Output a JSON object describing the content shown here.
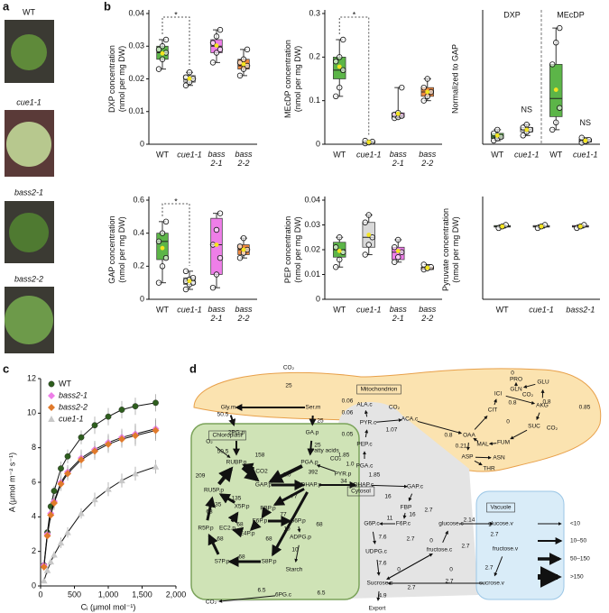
{
  "panel_letters": [
    "a",
    "b",
    "c",
    "d"
  ],
  "photos": {
    "labels": [
      "WT",
      "cue1-1",
      "bass2-1",
      "bass2-2"
    ]
  },
  "chart_data": [
    {
      "type": "box",
      "ylabel": "DXP concentration (nmol per mg DW)",
      "categories": [
        "WT",
        "cue1-1",
        "bass 2-1",
        "bass 2-2"
      ],
      "ylim": [
        0,
        0.04
      ],
      "yticks": [
        0,
        0.01,
        0.02,
        0.03,
        0.04
      ],
      "annotation": "*",
      "boxes": [
        {
          "color": "#5cb548",
          "min": 0.023,
          "q1": 0.026,
          "median": 0.028,
          "q3": 0.03,
          "max": 0.032,
          "mean": 0.0278,
          "points": [
            0.023,
            0.026,
            0.028,
            0.029,
            0.03,
            0.032
          ]
        },
        {
          "color": "#d9d9d9",
          "min": 0.018,
          "q1": 0.019,
          "median": 0.02,
          "q3": 0.021,
          "max": 0.022,
          "mean": 0.0201,
          "points": [
            0.018,
            0.019,
            0.02,
            0.0205,
            0.022
          ]
        },
        {
          "color": "#ee7ee8",
          "min": 0.025,
          "q1": 0.028,
          "median": 0.03,
          "q3": 0.032,
          "max": 0.035,
          "mean": 0.0302,
          "points": [
            0.025,
            0.028,
            0.029,
            0.031,
            0.033,
            0.035
          ]
        },
        {
          "color": "#f0883e",
          "min": 0.021,
          "q1": 0.023,
          "median": 0.024,
          "q3": 0.026,
          "max": 0.029,
          "mean": 0.0245,
          "points": [
            0.021,
            0.023,
            0.024,
            0.025,
            0.026,
            0.029
          ]
        }
      ]
    },
    {
      "type": "box",
      "ylabel": "MEcDP concentration (nmol per mg DW)",
      "categories": [
        "WT",
        "cue1-1",
        "bass 2-1",
        "bass 2-2"
      ],
      "ylim": [
        0,
        0.3
      ],
      "yticks": [
        0,
        0.1,
        0.2,
        0.3
      ],
      "annotation": "*",
      "boxes": [
        {
          "color": "#5cb548",
          "min": 0.11,
          "q1": 0.15,
          "median": 0.17,
          "q3": 0.2,
          "max": 0.24,
          "mean": 0.178,
          "points": [
            0.11,
            0.13,
            0.17,
            0.19,
            0.2,
            0.24
          ]
        },
        {
          "color": "#d9d9d9",
          "min": 0.002,
          "q1": 0.003,
          "median": 0.004,
          "q3": 0.006,
          "max": 0.008,
          "mean": 0.005,
          "points": [
            0.002,
            0.004,
            0.006,
            0.008
          ]
        },
        {
          "color": "#ee7ee8",
          "min": 0.06,
          "q1": 0.062,
          "median": 0.065,
          "q3": 0.072,
          "max": 0.13,
          "mean": 0.07,
          "points": [
            0.06,
            0.062,
            0.065,
            0.068,
            0.072,
            0.13
          ]
        },
        {
          "color": "#f0883e",
          "min": 0.1,
          "q1": 0.11,
          "median": 0.12,
          "q3": 0.13,
          "max": 0.15,
          "mean": 0.12,
          "points": [
            0.1,
            0.11,
            0.12,
            0.13,
            0.15
          ]
        }
      ]
    },
    {
      "type": "box",
      "ylabel": "Normalized to GAP",
      "categories": [
        "WT",
        "cue1-1",
        "WT",
        "cue1-1"
      ],
      "groups": [
        "DXP",
        "MEcDP"
      ],
      "annotations": [
        "NS",
        "NS"
      ],
      "ylim": [
        0,
        1.8
      ],
      "boxes": [
        {
          "color": "#5cb548",
          "min": 0.05,
          "q1": 0.08,
          "median": 0.1,
          "q3": 0.15,
          "max": 0.2,
          "mean": 0.12,
          "points": [
            0.05,
            0.08,
            0.1,
            0.15,
            0.2
          ]
        },
        {
          "color": "#d9d9d9",
          "min": 0.12,
          "q1": 0.17,
          "median": 0.2,
          "q3": 0.23,
          "max": 0.27,
          "mean": 0.2,
          "points": [
            0.12,
            0.17,
            0.2,
            0.23,
            0.27
          ]
        },
        {
          "color": "#5cb548",
          "min": 0.2,
          "q1": 0.38,
          "median": 0.63,
          "q3": 1.1,
          "max": 1.6,
          "mean": 0.75,
          "points": [
            0.2,
            0.3,
            0.5,
            1.1,
            1.4,
            1.6
          ]
        },
        {
          "color": "#d9d9d9",
          "min": 0.02,
          "q1": 0.03,
          "median": 0.05,
          "q3": 0.07,
          "max": 0.09,
          "mean": 0.05,
          "points": [
            0.02,
            0.04,
            0.06,
            0.09
          ]
        }
      ]
    },
    {
      "type": "box",
      "ylabel": "GAP concentration (nmol per mg DW)",
      "categories": [
        "WT",
        "cue1-1",
        "bass 2-1",
        "bass 2-2"
      ],
      "ylim": [
        0,
        0.6
      ],
      "yticks": [
        0,
        0.2,
        0.4,
        0.6
      ],
      "annotation": "*",
      "boxes": [
        {
          "color": "#5cb548",
          "min": 0.1,
          "q1": 0.24,
          "median": 0.35,
          "q3": 0.4,
          "max": 0.47,
          "mean": 0.31,
          "points": [
            0.1,
            0.2,
            0.25,
            0.35,
            0.4,
            0.47
          ]
        },
        {
          "color": "#d9d9d9",
          "min": 0.06,
          "q1": 0.09,
          "median": 0.11,
          "q3": 0.13,
          "max": 0.17,
          "mean": 0.11,
          "points": [
            0.06,
            0.09,
            0.1,
            0.11,
            0.12,
            0.13,
            0.17
          ]
        },
        {
          "color": "#ee7ee8",
          "min": 0.07,
          "q1": 0.15,
          "median": 0.33,
          "q3": 0.49,
          "max": 0.52,
          "mean": 0.33,
          "points": [
            0.07,
            0.15,
            0.25,
            0.33,
            0.42,
            0.52
          ]
        },
        {
          "color": "#f0883e",
          "min": 0.25,
          "q1": 0.27,
          "median": 0.3,
          "q3": 0.33,
          "max": 0.37,
          "mean": 0.3,
          "points": [
            0.25,
            0.28,
            0.3,
            0.32,
            0.37
          ]
        }
      ]
    },
    {
      "type": "box",
      "ylabel": "PEP concentration (nmol per mg DW)",
      "categories": [
        "WT",
        "cue1-1",
        "bass 2-1",
        "bass 2-2"
      ],
      "ylim": [
        0,
        0.04
      ],
      "yticks": [
        0,
        0.01,
        0.02,
        0.03,
        0.04
      ],
      "boxes": [
        {
          "color": "#5cb548",
          "min": 0.013,
          "q1": 0.017,
          "median": 0.02,
          "q3": 0.023,
          "max": 0.025,
          "mean": 0.0195,
          "points": [
            0.013,
            0.016,
            0.019,
            0.021,
            0.025
          ]
        },
        {
          "color": "#d9d9d9",
          "min": 0.018,
          "q1": 0.021,
          "median": 0.025,
          "q3": 0.031,
          "max": 0.034,
          "mean": 0.026,
          "points": [
            0.018,
            0.022,
            0.025,
            0.031,
            0.034
          ]
        },
        {
          "color": "#ee7ee8",
          "min": 0.015,
          "q1": 0.016,
          "median": 0.019,
          "q3": 0.021,
          "max": 0.024,
          "mean": 0.0195,
          "points": [
            0.015,
            0.017,
            0.019,
            0.021,
            0.024
          ]
        },
        {
          "color": "#f0883e",
          "min": 0.012,
          "q1": 0.012,
          "median": 0.0125,
          "q3": 0.013,
          "max": 0.014,
          "mean": 0.0127,
          "points": [
            0.012,
            0.0125,
            0.013,
            0.014
          ]
        }
      ]
    },
    {
      "type": "box",
      "ylabel": "Pyruvate concentration (nmol per mg DW)",
      "categories": [
        "WT",
        "cue1-1",
        "bass2-1"
      ],
      "ylim": [
        0,
        0.32
      ],
      "boxes": [
        {
          "color": "#5cb548",
          "min": 0.23,
          "q1": 0.233,
          "median": 0.235,
          "q3": 0.238,
          "max": 0.24,
          "mean": 0.235,
          "points": [
            0.23,
            0.235,
            0.24
          ]
        },
        {
          "color": "#d9d9d9",
          "min": 0.23,
          "q1": 0.233,
          "median": 0.235,
          "q3": 0.238,
          "max": 0.24,
          "mean": 0.235,
          "points": [
            0.23,
            0.235,
            0.24
          ]
        },
        {
          "color": "#ee7ee8",
          "min": 0.23,
          "q1": 0.233,
          "median": 0.235,
          "q3": 0.238,
          "max": 0.24,
          "mean": 0.235,
          "points": [
            0.23,
            0.235,
            0.24
          ]
        }
      ]
    },
    {
      "type": "line",
      "ylabel": "A (μmol m⁻² s⁻¹)",
      "xlabel": "Cᵢ (μmol mol⁻¹)",
      "xlim": [
        0,
        2000
      ],
      "ylim": [
        0,
        12
      ],
      "xticks": [
        0,
        500,
        {
          "value": 1000,
          "label": "1,000"
        },
        {
          "value": 1500,
          "label": "1,500"
        },
        {
          "value": 2000,
          "label": "2,000"
        }
      ],
      "yticks": [
        0,
        2,
        4,
        6,
        8,
        10,
        12
      ],
      "x": [
        50,
        100,
        150,
        200,
        300,
        400,
        600,
        800,
        1000,
        1200,
        1400,
        1700
      ],
      "series": [
        {
          "name": "WT",
          "color": "#2e5e1e",
          "marker": "circle",
          "values": [
            1.2,
            3.1,
            4.6,
            5.5,
            6.8,
            7.5,
            8.6,
            9.3,
            9.8,
            10.2,
            10.4,
            10.6
          ],
          "errors": [
            0.2,
            0.3,
            0.3,
            0.3,
            0.4,
            0.4,
            0.4,
            0.5,
            0.5,
            0.5,
            0.5,
            0.5
          ]
        },
        {
          "name": "bass2-1",
          "color": "#ee7ee8",
          "marker": "diamond",
          "values": [
            1.2,
            3.0,
            4.2,
            4.9,
            6.0,
            6.6,
            7.4,
            7.9,
            8.3,
            8.6,
            8.8,
            9.1
          ],
          "errors": [
            0.2,
            0.3,
            0.3,
            0.4,
            0.4,
            0.4,
            0.5,
            0.5,
            0.5,
            0.5,
            0.6,
            0.6
          ]
        },
        {
          "name": "bass2-2",
          "color": "#e07a2c",
          "marker": "diamond",
          "values": [
            1.1,
            2.9,
            4.1,
            4.8,
            5.9,
            6.5,
            7.3,
            7.8,
            8.2,
            8.5,
            8.7,
            9.0
          ],
          "errors": [
            0.2,
            0.3,
            0.3,
            0.4,
            0.4,
            0.4,
            0.5,
            0.5,
            0.5,
            0.5,
            0.6,
            0.6
          ]
        },
        {
          "name": "cue1-1",
          "color": "#c8c8c8",
          "marker": "triangle",
          "values": [
            0.3,
            0.9,
            1.4,
            1.8,
            2.5,
            3.1,
            4.2,
            5.0,
            5.6,
            6.1,
            6.5,
            6.9
          ],
          "errors": [
            0.1,
            0.2,
            0.2,
            0.2,
            0.3,
            0.3,
            0.3,
            0.4,
            0.4,
            0.4,
            0.4,
            0.4
          ]
        }
      ]
    }
  ],
  "diagram": {
    "compartments": [
      "Mitochondrion",
      "Chloroplast",
      "Cytosol",
      "Vacuole"
    ],
    "nodes": [
      "CO₂",
      "Gly.m",
      "Ser.m",
      "2PG.p",
      "O₂",
      "RUBP.p",
      "CO2",
      "GA.p",
      "Fatty acids",
      "PGA.p",
      "PYR.p",
      "GAP.p",
      "DHAP.p",
      "RU5P.p",
      "X5P.p",
      "FBP.p",
      "F6P.p",
      "G6P.p",
      "EC2.p",
      "E4P.p",
      "R5P.p",
      "ADPG.p",
      "S7P.p",
      "S8P.p",
      "Starch",
      "CO₂",
      "6PG.c",
      "ALA.c",
      "CO₂",
      "PYR.c",
      "ACA.c",
      "PEP.c",
      "CO₂",
      "PGA.c",
      "DHAP.c",
      "GAP.c",
      "FBP",
      "G6P.c",
      "F6P.c",
      "glucose.c",
      "glucose.v",
      "UDPG.c",
      "fructose.c",
      "fructose.v",
      "Sucrose.c",
      "sucrose.v",
      "Export",
      "PRO",
      "GLN",
      "GLU",
      "ICI",
      "CO₂",
      "CIT",
      "AKG",
      "OAA",
      "MAL",
      "FUM",
      "SUC",
      "CO₂",
      "ASP",
      "ASN",
      "THR"
    ],
    "flux_labels": [
      "25",
      "50.5",
      "25",
      "50.5",
      "209",
      "158",
      "25",
      "392",
      "1.0",
      "1.0",
      "135",
      "135",
      "77",
      "77",
      "68",
      "68",
      "68",
      "68",
      "68",
      "68",
      "10",
      "10",
      "34",
      "1.85",
      "1.85",
      "0.06",
      "0.06",
      "0.05",
      "1.07",
      "0.8",
      "0.21",
      "0",
      "0.8",
      "0.8",
      "0.85",
      "0",
      "16",
      "16",
      "11",
      "2.7",
      "2.14",
      "7.6",
      "7.6",
      "2.7",
      "2.7",
      "2.7",
      "2.7",
      "2.7",
      "2.7",
      "0",
      "0",
      "4.9",
      "6.5",
      "6.5",
      "0"
    ],
    "legend": [
      "<10",
      "10–50",
      "50–150",
      ">150"
    ]
  }
}
